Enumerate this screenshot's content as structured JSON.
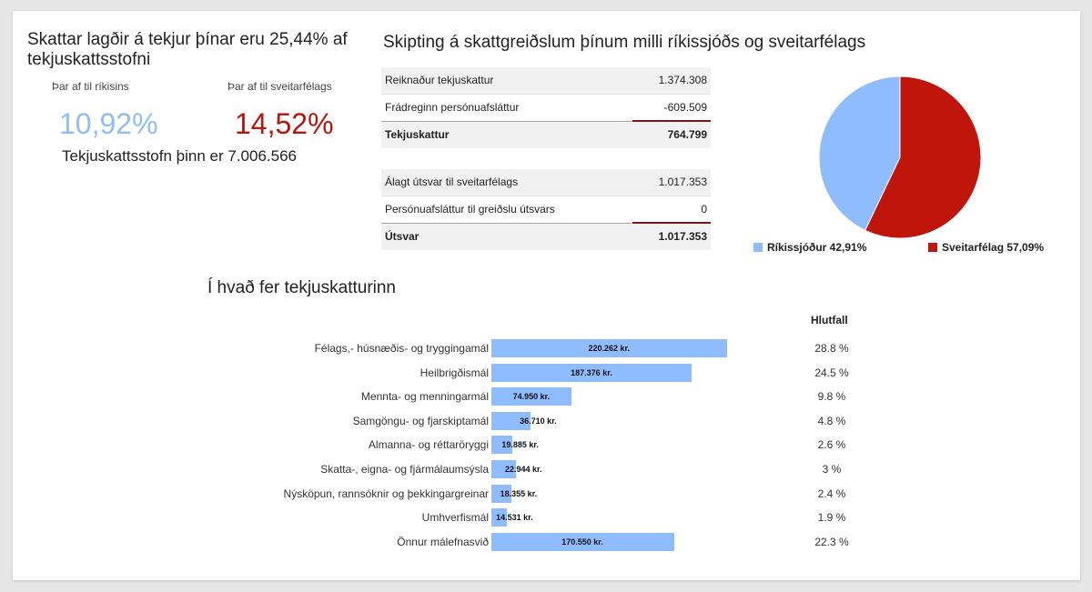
{
  "summary": {
    "headline": "Skattar lagðir á tekjur þínar eru 25,44% af tekjuskattsstofni",
    "state_label": "Þar af til ríkisins",
    "state_pct": "10,92%",
    "municipal_label": "Þar af til sveitarfélags",
    "municipal_pct": "14,52%",
    "base_text": "Tekjuskattsstofn þinn er 7.006.566"
  },
  "distribution": {
    "title": "Skipting á skattgreiðslum þínum milli ríkissjóðs og sveitarfélags",
    "income_tax_table": [
      {
        "label": "Reiknaður tekjuskattur",
        "value": "1.374.308"
      },
      {
        "label": "Frádreginn persónuafsláttur",
        "value": "-609.509"
      },
      {
        "label": "Tekjuskattur",
        "value": "764.799"
      }
    ],
    "municipal_table": [
      {
        "label": "Álagt útsvar til sveitarfélags",
        "value": "1.017.353"
      },
      {
        "label": "Persónuafsláttur til greiðslu útsvars",
        "value": "0"
      },
      {
        "label": "Útsvar",
        "value": "1.017.353"
      }
    ],
    "pie": {
      "slices": [
        {
          "name": "Ríkissjóður",
          "pct": 42.91,
          "label": "Ríkissjóður 42,91%",
          "color": "#8fbcff"
        },
        {
          "name": "Sveitarfélag",
          "pct": 57.09,
          "label": "Sveitarfélag 57,09%",
          "color": "#c0150a"
        }
      ]
    }
  },
  "breakdown": {
    "title": "Í hvað fer tekjuskatturinn",
    "pct_header": "Hlutfall"
  },
  "chart_data": {
    "type": "bar",
    "orientation": "horizontal",
    "title": "Í hvað fer tekjuskatturinn",
    "categories": [
      "Félags,- húsnæðis- og tryggingamál",
      "Heilbrigðismál",
      "Mennta- og menningarmál",
      "Samgöngu- og fjarskiptamál",
      "Almanna- og réttaröryggi",
      "Skatta-, eigna- og fjármálaumsýsla",
      "Nýsköpun, rannsóknir og þekkingargreinar",
      "Umhverfismál",
      "Önnur málefnasvið"
    ],
    "values": [
      220262,
      187376,
      74950,
      36710,
      19885,
      22944,
      18355,
      14531,
      170550
    ],
    "value_labels": [
      "220.262 kr.",
      "187.376 kr.",
      "74.950 kr.",
      "36.710 kr.",
      "19.885 kr.",
      "22.944 kr.",
      "18.355 kr.",
      "14.531 kr.",
      "170.550 kr."
    ],
    "percent_labels": [
      "28.8 %",
      "24.5 %",
      "9.8 %",
      "4.8 %",
      "2.6 %",
      "3 %",
      "2.4 %",
      "1.9 %",
      "22.3 %"
    ],
    "xlim": [
      0,
      220262
    ],
    "colors": {
      "bar": "#8fbcff"
    }
  }
}
